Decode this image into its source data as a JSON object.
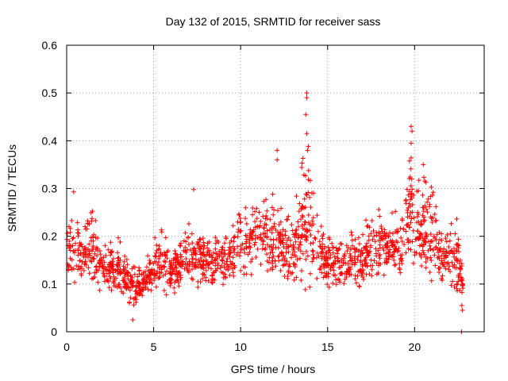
{
  "chart_data": {
    "type": "scatter",
    "title": "Day 132 of 2015, SRMTID for receiver sass",
    "xlabel": "GPS time / hours",
    "ylabel": "SRMTID / TECUs",
    "xlim": [
      0,
      24
    ],
    "ylim": [
      0,
      0.6
    ],
    "xticks": [
      0,
      5,
      10,
      15,
      20
    ],
    "xtick_labels": [
      "0",
      "5",
      "10",
      "15",
      "20"
    ],
    "yticks": [
      0,
      0.1,
      0.2,
      0.3,
      0.4,
      0.5,
      0.6
    ],
    "ytick_labels": [
      "0",
      "0.1",
      "0.2",
      "0.3",
      "0.4",
      "0.5",
      "0.6"
    ],
    "grid": true,
    "marker": "+",
    "color": "#ff0000",
    "series": [
      {
        "name": "SRMTID",
        "points_generated": "approximate density from image",
        "envelope": [
          [
            0.0,
            0.08,
            0.24
          ],
          [
            0.5,
            0.09,
            0.25
          ],
          [
            1.0,
            0.1,
            0.22
          ],
          [
            1.5,
            0.09,
            0.28
          ],
          [
            2.0,
            0.07,
            0.2
          ],
          [
            2.5,
            0.07,
            0.19
          ],
          [
            3.0,
            0.06,
            0.2
          ],
          [
            3.5,
            0.05,
            0.18
          ],
          [
            4.0,
            0.03,
            0.15
          ],
          [
            4.5,
            0.05,
            0.17
          ],
          [
            5.0,
            0.07,
            0.21
          ],
          [
            5.5,
            0.07,
            0.23
          ],
          [
            6.0,
            0.06,
            0.18
          ],
          [
            6.5,
            0.09,
            0.2
          ],
          [
            7.0,
            0.09,
            0.24
          ],
          [
            7.5,
            0.08,
            0.22
          ],
          [
            8.0,
            0.07,
            0.21
          ],
          [
            8.5,
            0.08,
            0.22
          ],
          [
            9.0,
            0.08,
            0.21
          ],
          [
            9.5,
            0.09,
            0.23
          ],
          [
            10.0,
            0.1,
            0.29
          ],
          [
            10.5,
            0.1,
            0.27
          ],
          [
            11.0,
            0.12,
            0.31
          ],
          [
            11.5,
            0.1,
            0.29
          ],
          [
            12.0,
            0.09,
            0.33
          ],
          [
            12.5,
            0.09,
            0.23
          ],
          [
            13.0,
            0.07,
            0.27
          ],
          [
            13.5,
            0.04,
            0.35
          ],
          [
            13.8,
            0.05,
            0.5
          ],
          [
            14.0,
            0.08,
            0.33
          ],
          [
            14.3,
            0.1,
            0.28
          ],
          [
            14.8,
            0.08,
            0.22
          ],
          [
            15.5,
            0.07,
            0.22
          ],
          [
            16.0,
            0.06,
            0.2
          ],
          [
            16.5,
            0.07,
            0.22
          ],
          [
            17.0,
            0.06,
            0.23
          ],
          [
            17.5,
            0.08,
            0.26
          ],
          [
            18.0,
            0.09,
            0.27
          ],
          [
            18.5,
            0.1,
            0.25
          ],
          [
            19.0,
            0.09,
            0.26
          ],
          [
            19.5,
            0.1,
            0.28
          ],
          [
            19.8,
            0.11,
            0.43
          ],
          [
            20.0,
            0.1,
            0.3
          ],
          [
            20.5,
            0.08,
            0.35
          ],
          [
            21.0,
            0.09,
            0.32
          ],
          [
            21.5,
            0.06,
            0.25
          ],
          [
            22.0,
            0.06,
            0.24
          ],
          [
            22.5,
            0.05,
            0.24
          ],
          [
            22.8,
            0.04,
            0.15
          ]
        ]
      }
    ]
  }
}
